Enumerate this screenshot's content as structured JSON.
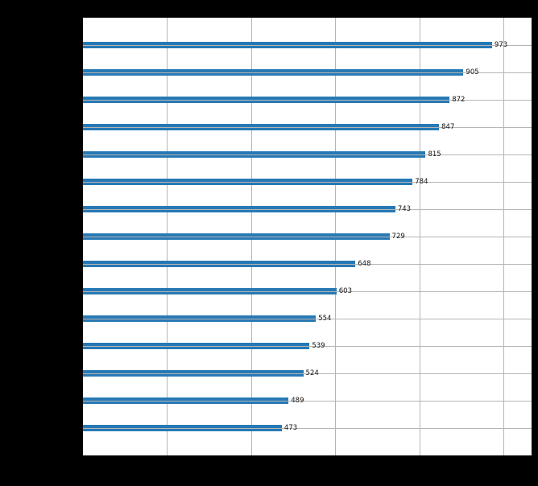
{
  "figure": {
    "background": "#000000",
    "plot_background": "#ffffff",
    "grid_color": "#b5b5b5",
    "bar_color": "#2779b5",
    "value_label_color": "#141414"
  },
  "chart_data": {
    "type": "bar",
    "orientation": "horizontal",
    "values": [
      973,
      905,
      872,
      847,
      815,
      784,
      743,
      729,
      648,
      603,
      554,
      539,
      524,
      489,
      473
    ],
    "value_labels": [
      "973",
      "905",
      "872",
      "847",
      "815",
      "784",
      "743",
      "729",
      "648",
      "603",
      "554",
      "539",
      "524",
      "489",
      "473"
    ],
    "xlim": [
      0,
      1067
    ],
    "x_gridlines": [
      200,
      400,
      600,
      800,
      1000
    ],
    "grid": true,
    "legend_position": "none",
    "title": "",
    "xlabel": "",
    "ylabel": ""
  }
}
